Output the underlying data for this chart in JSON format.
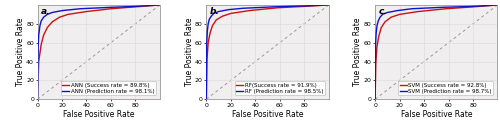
{
  "panels": [
    {
      "label": "a.",
      "show_ylabel": true,
      "legend": [
        {
          "text": "ANN (Prediction rate = 98.1%)",
          "color": "#1111cc"
        },
        {
          "text": "ANN (Success rate = 89.8%)",
          "color": "#cc1111"
        }
      ],
      "prediction_curve": {
        "x": [
          0,
          0.5,
          1,
          2,
          3,
          5,
          8,
          12,
          20,
          35,
          60,
          80,
          100
        ],
        "y": [
          0,
          55,
          68,
          78,
          83,
          87,
          90,
          92,
          94,
          96,
          97.5,
          98.5,
          100
        ]
      },
      "success_curve": {
        "x": [
          0,
          1,
          3,
          5,
          8,
          12,
          18,
          25,
          40,
          60,
          80,
          100
        ],
        "y": [
          0,
          40,
          58,
          68,
          76,
          82,
          87,
          90,
          93,
          96,
          98,
          100
        ]
      }
    },
    {
      "label": "b.",
      "show_ylabel": false,
      "legend": [
        {
          "text": "RF (Prediction rate = 98.5%)",
          "color": "#1111cc"
        },
        {
          "text": "RF(Success rate = 91.9%)",
          "color": "#cc1111"
        }
      ],
      "prediction_curve": {
        "x": [
          0,
          0.3,
          0.8,
          1.5,
          2.5,
          4,
          6,
          10,
          18,
          30,
          55,
          80,
          100
        ],
        "y": [
          0,
          58,
          72,
          80,
          85,
          88,
          91,
          93,
          95,
          96.5,
          98,
          99,
          100
        ]
      },
      "success_curve": {
        "x": [
          0,
          0.5,
          1.5,
          3,
          5,
          8,
          13,
          20,
          35,
          58,
          80,
          100
        ],
        "y": [
          0,
          42,
          60,
          70,
          78,
          84,
          88,
          91,
          94,
          97,
          98.5,
          100
        ]
      }
    },
    {
      "label": "c.",
      "show_ylabel": false,
      "legend": [
        {
          "text": "SVM (Prediction rate = 98.7%)",
          "color": "#1111cc"
        },
        {
          "text": "SVM (Success rate = 92.8%)",
          "color": "#cc1111"
        }
      ],
      "prediction_curve": {
        "x": [
          0,
          0.3,
          0.8,
          1.5,
          2.5,
          4,
          6,
          10,
          18,
          30,
          55,
          80,
          100
        ],
        "y": [
          0,
          56,
          70,
          78,
          83,
          87,
          90,
          92,
          94,
          96,
          97.5,
          98.5,
          100
        ]
      },
      "success_curve": {
        "x": [
          0,
          0.5,
          1.5,
          3,
          5,
          8,
          13,
          20,
          35,
          58,
          80,
          100
        ],
        "y": [
          0,
          38,
          56,
          67,
          76,
          82,
          87,
          90,
          93,
          96,
          98,
          100
        ]
      }
    }
  ],
  "xlabel": "False Positive Rate",
  "ylabel": "True Positive Rate",
  "xlim": [
    0,
    100
  ],
  "ylim": [
    0,
    100
  ],
  "xticks": [
    0,
    20,
    40,
    60,
    80
  ],
  "yticks": [
    0,
    20,
    40,
    60,
    80
  ],
  "diagonal_color": "#999999",
  "bg_color": "#f0eeee",
  "grid_color": "#dddddd",
  "fig_bg_color": "#ffffff",
  "border_color": "#999999",
  "label_fontsize": 5.5,
  "tick_fontsize": 4.5,
  "legend_fontsize": 4.0,
  "panel_label_fontsize": 6.5
}
